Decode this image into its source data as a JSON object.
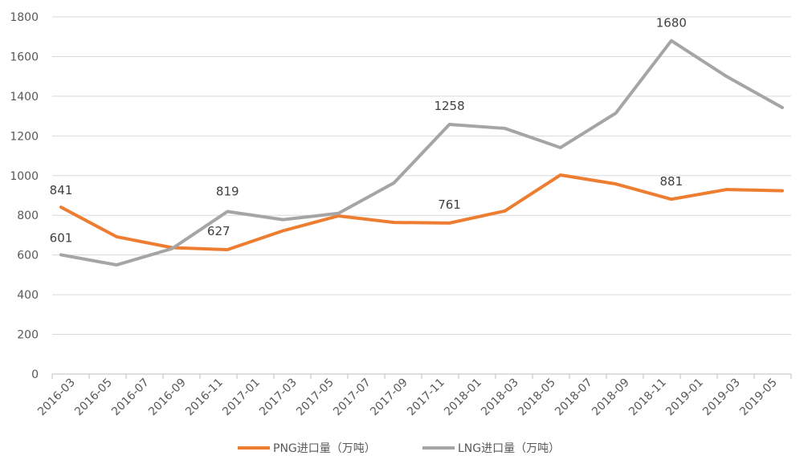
{
  "chart_data": {
    "type": "line",
    "title": "",
    "xlabel": "",
    "ylabel": "",
    "ylim": [
      0,
      1800
    ],
    "yticks": [
      0,
      200,
      400,
      600,
      800,
      1000,
      1200,
      1400,
      1600,
      1800
    ],
    "x_tick_labels": [
      "2016-03",
      "2016-05",
      "2016-07",
      "2016-09",
      "2016-11",
      "2017-01",
      "2017-03",
      "2017-05",
      "2017-07",
      "2017-09",
      "2017-11",
      "2018-01",
      "2018-03",
      "2018-05",
      "2018-07",
      "2018-09",
      "2018-11",
      "2019-01",
      "2019-03",
      "2019-05"
    ],
    "x": [
      "2016-03",
      "2016-06",
      "2016-09",
      "2016-12",
      "2017-03",
      "2017-06",
      "2017-09",
      "2017-12",
      "2018-03",
      "2018-06",
      "2018-09",
      "2018-12",
      "2019-03",
      "2019-06"
    ],
    "series": [
      {
        "name": "PNG进口量（万吨）",
        "color": "#ED7D31",
        "values": [
          841,
          692,
          637,
          627,
          722,
          797,
          764,
          761,
          822,
          1003,
          958,
          881,
          930,
          924
        ],
        "labels": [
          {
            "index": 0,
            "text": "841"
          },
          {
            "index": 3,
            "text": "627"
          },
          {
            "index": 7,
            "text": "761"
          },
          {
            "index": 11,
            "text": "881"
          }
        ]
      },
      {
        "name": "LNG进口量（万吨）",
        "color": "#A5A5A5",
        "values": [
          601,
          550,
          632,
          819,
          778,
          810,
          963,
          1258,
          1238,
          1141,
          1315,
          1680,
          1499,
          1343
        ],
        "labels": [
          {
            "index": 0,
            "text": "601"
          },
          {
            "index": 3,
            "text": "819"
          },
          {
            "index": 7,
            "text": "1258"
          },
          {
            "index": 11,
            "text": "1680"
          }
        ]
      }
    ],
    "legend": "bottom",
    "grid": true
  }
}
